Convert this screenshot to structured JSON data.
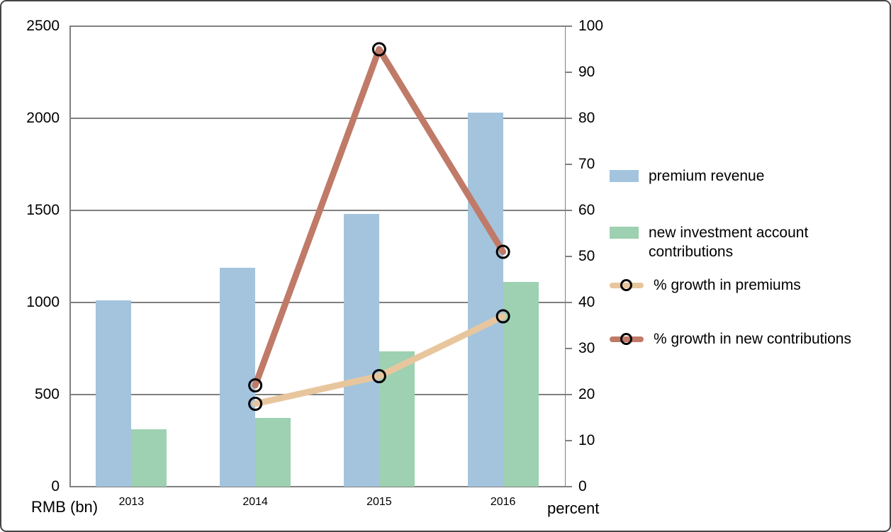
{
  "chart_data": {
    "type": "combo-bar-line",
    "categories": [
      "2013",
      "2014",
      "2015",
      "2016"
    ],
    "bar_series": [
      {
        "name": "premium revenue",
        "color": "#a4c4dd",
        "axis": "left",
        "values": [
          1010,
          1190,
          1480,
          2030
        ]
      },
      {
        "name": "new investment account contributions",
        "color": "#9ed1b1",
        "axis": "left",
        "values": [
          310,
          375,
          735,
          1110
        ]
      }
    ],
    "line_series": [
      {
        "name": "% growth in premiums",
        "color": "#e8c69d",
        "axis": "right",
        "values": [
          null,
          18,
          24,
          37
        ]
      },
      {
        "name": "% growth in new contributions",
        "color": "#c07a68",
        "axis": "right",
        "values": [
          null,
          22,
          95,
          51
        ]
      }
    ],
    "left_axis": {
      "label": "RMB (bn)",
      "min": 0,
      "max": 2500,
      "tick_step": 500,
      "tick_labels": [
        "0",
        "500",
        "1000",
        "1500",
        "2000",
        "2500"
      ]
    },
    "right_axis": {
      "label": "percent",
      "min": 0,
      "max": 100,
      "tick_step": 10,
      "tick_labels": [
        "0",
        "10",
        "20",
        "30",
        "40",
        "50",
        "60",
        "70",
        "80",
        "90",
        "100"
      ]
    },
    "grid": "horizontal-major",
    "legend_position": "right",
    "marker": {
      "shape": "open-circle",
      "stroke": "#000000"
    }
  },
  "colors": {
    "gridline": "#808080",
    "axis": "#808080",
    "text": "#000000",
    "frame_border": "#454545",
    "background": "#ffffff"
  }
}
